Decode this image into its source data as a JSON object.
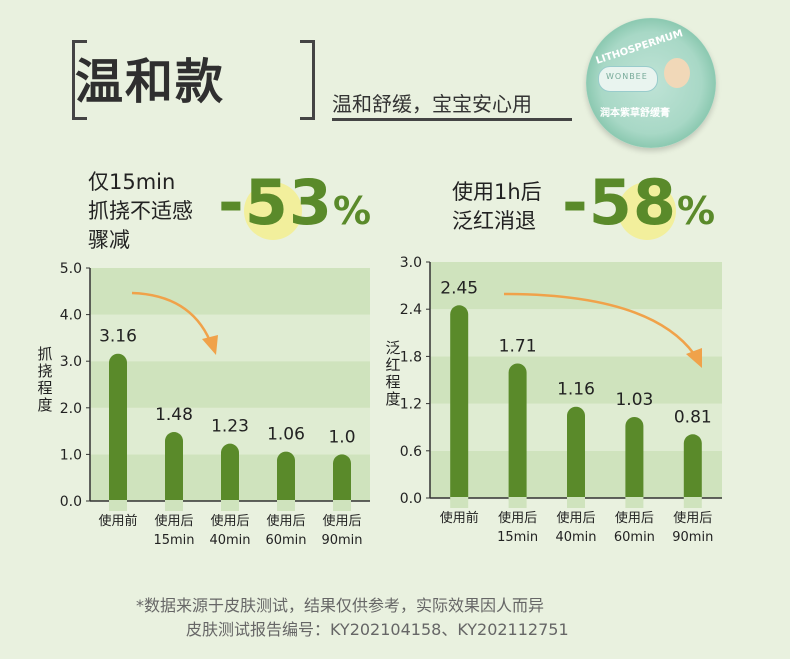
{
  "header": {
    "title": "温和款",
    "subtitle": "温和舒缓，宝宝安心用"
  },
  "product": {
    "brand_text": "LITHOSPERMUM",
    "logo_text": "WONBEE",
    "band_text": "润本紫草舒缓膏"
  },
  "stats": [
    {
      "label_lines": [
        "仅15min",
        "抓挠不适感",
        "骤减"
      ],
      "value": "-53",
      "unit": "%"
    },
    {
      "label_lines": [
        "使用1h后",
        "泛红消退"
      ],
      "value": "-58",
      "unit": "%"
    }
  ],
  "colors": {
    "background": "#e9f1df",
    "bar": "#5a8a2a",
    "band_dark": "#cfe3bd",
    "band_light": "#dfecd2",
    "arrow": "#f0a24a",
    "highlight": "#f2ef9c"
  },
  "chart_data": [
    {
      "type": "bar",
      "title": "",
      "ylabel": "抓挠程度",
      "ylim": [
        0,
        5
      ],
      "yticks": [
        "0.0",
        "1.0",
        "2.0",
        "3.0",
        "4.0",
        "5.0"
      ],
      "categories": [
        [
          "使用前"
        ],
        [
          "使用后",
          "15min"
        ],
        [
          "使用后",
          "40min"
        ],
        [
          "使用后",
          "60min"
        ],
        [
          "使用后",
          "90min"
        ]
      ],
      "values": [
        3.16,
        1.48,
        1.23,
        1.06,
        1.0
      ],
      "value_labels": [
        "3.16",
        "1.48",
        "1.23",
        "1.06",
        "1.0"
      ],
      "grid": false,
      "annotation": "trend-arrow-down"
    },
    {
      "type": "bar",
      "title": "",
      "ylabel": "泛红程度",
      "ylim": [
        0,
        3
      ],
      "yticks": [
        "0.0",
        "0.6",
        "1.2",
        "1.8",
        "2.4",
        "3.0"
      ],
      "categories": [
        [
          "使用前"
        ],
        [
          "使用后",
          "15min"
        ],
        [
          "使用后",
          "40min"
        ],
        [
          "使用后",
          "60min"
        ],
        [
          "使用后",
          "90min"
        ]
      ],
      "values": [
        2.45,
        1.71,
        1.16,
        1.03,
        0.81
      ],
      "value_labels": [
        "2.45",
        "1.71",
        "1.16",
        "1.03",
        "0.81"
      ],
      "grid": false,
      "annotation": "trend-arrow-down"
    }
  ],
  "footer": {
    "line1": "*数据来源于皮肤测试，结果仅供参考，实际效果因人而异",
    "line2": "皮肤测试报告编号：KY202104158、KY202112751"
  }
}
